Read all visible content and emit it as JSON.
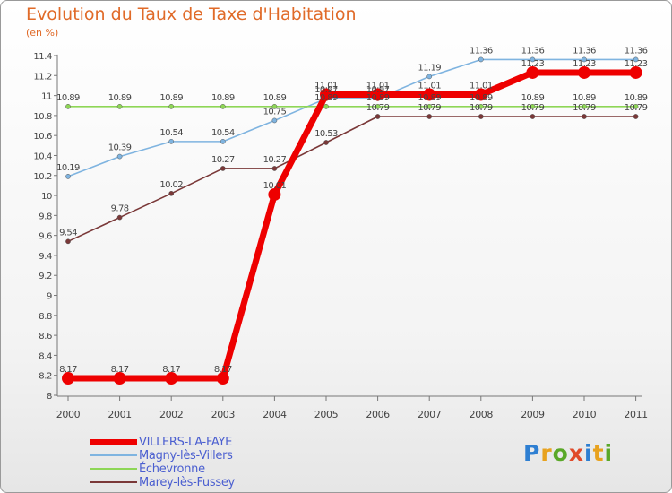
{
  "title": "Evolution du Taux de Taxe d'Habitation",
  "unit_label": "(en %)",
  "logo": {
    "letters": [
      "P",
      "r",
      "o",
      "x",
      "i",
      "t",
      "i"
    ],
    "colors": [
      "#2e7fd2",
      "#e8a21e",
      "#5aa828",
      "#e04a2a",
      "#2e7fd2",
      "#e8a21e",
      "#5aa828"
    ]
  },
  "chart_data": {
    "type": "line",
    "title": "Evolution du Taux de Taxe d'Habitation",
    "ylabel": "(en %)",
    "xlabel": "",
    "x": [
      "2000",
      "2001",
      "2002",
      "2003",
      "2004",
      "2005",
      "2006",
      "2007",
      "2008",
      "2009",
      "2010",
      "2011"
    ],
    "ylim": [
      7.99,
      11.41
    ],
    "yticks": [
      8,
      8.2,
      8.4,
      8.6,
      8.8,
      9,
      9.2,
      9.4,
      9.6,
      9.8,
      10,
      10.2,
      10.4,
      10.6,
      10.8,
      11,
      11.2,
      11.4
    ],
    "ytick_labels": [
      "8",
      "8.2",
      "8.4",
      "8.6",
      "8.8",
      "9",
      "9.2",
      "9.4",
      "9.6",
      "9.8",
      "10",
      "10.2",
      "10.4",
      "10.6",
      "10.8",
      "11",
      "11.2",
      "11.4"
    ],
    "grid": false,
    "legend_position": "bottom-left",
    "series": [
      {
        "name": "VILLERS-LA-FAYE",
        "color": "#ee0000",
        "line_width": 7,
        "marker_size": 7,
        "values": [
          8.17,
          8.17,
          8.17,
          8.17,
          10.01,
          11.01,
          11.01,
          11.01,
          11.01,
          11.23,
          11.23,
          11.23
        ],
        "labels": [
          "8.17",
          "8.17",
          "8.17",
          "8.17",
          "10.01",
          "11.01",
          "11.01",
          "11.01",
          "11.01",
          "11.23",
          "11.23",
          "11.23"
        ]
      },
      {
        "name": "Magny-lès-Villers",
        "color": "#7fb4e0",
        "line_width": 1.6,
        "marker_size": 2.6,
        "values": [
          10.19,
          10.39,
          10.54,
          10.54,
          10.75,
          10.97,
          10.97,
          11.19,
          11.36,
          11.36,
          11.36,
          11.36
        ],
        "labels": [
          "10.19",
          "10.39",
          "10.54",
          "10.54",
          "10.75",
          "10.97",
          "10.97",
          "11.19",
          "11.36",
          "11.36",
          "11.36",
          "11.36"
        ]
      },
      {
        "name": "Échevronne",
        "color": "#8ed656",
        "line_width": 1.6,
        "marker_size": 2.6,
        "values": [
          10.89,
          10.89,
          10.89,
          10.89,
          10.89,
          10.89,
          10.89,
          10.89,
          10.89,
          10.89,
          10.89,
          10.89
        ],
        "labels": [
          "10.89",
          "10.89",
          "10.89",
          "10.89",
          "10.89",
          "10.89",
          "10.89",
          "10.89",
          "10.89",
          "10.89",
          "10.89",
          "10.89"
        ]
      },
      {
        "name": "Marey-lès-Fussey",
        "color": "#7a3838",
        "line_width": 1.6,
        "marker_size": 2.6,
        "values": [
          9.54,
          9.78,
          10.02,
          10.27,
          10.27,
          10.53,
          10.79,
          10.79,
          10.79,
          10.79,
          10.79,
          10.79
        ],
        "labels": [
          "9.54",
          "9.78",
          "10.02",
          "10.27",
          "10.27",
          "10.53",
          "10.79",
          "10.79",
          "10.79",
          "10.79",
          "10.79",
          "10.79"
        ]
      }
    ]
  }
}
